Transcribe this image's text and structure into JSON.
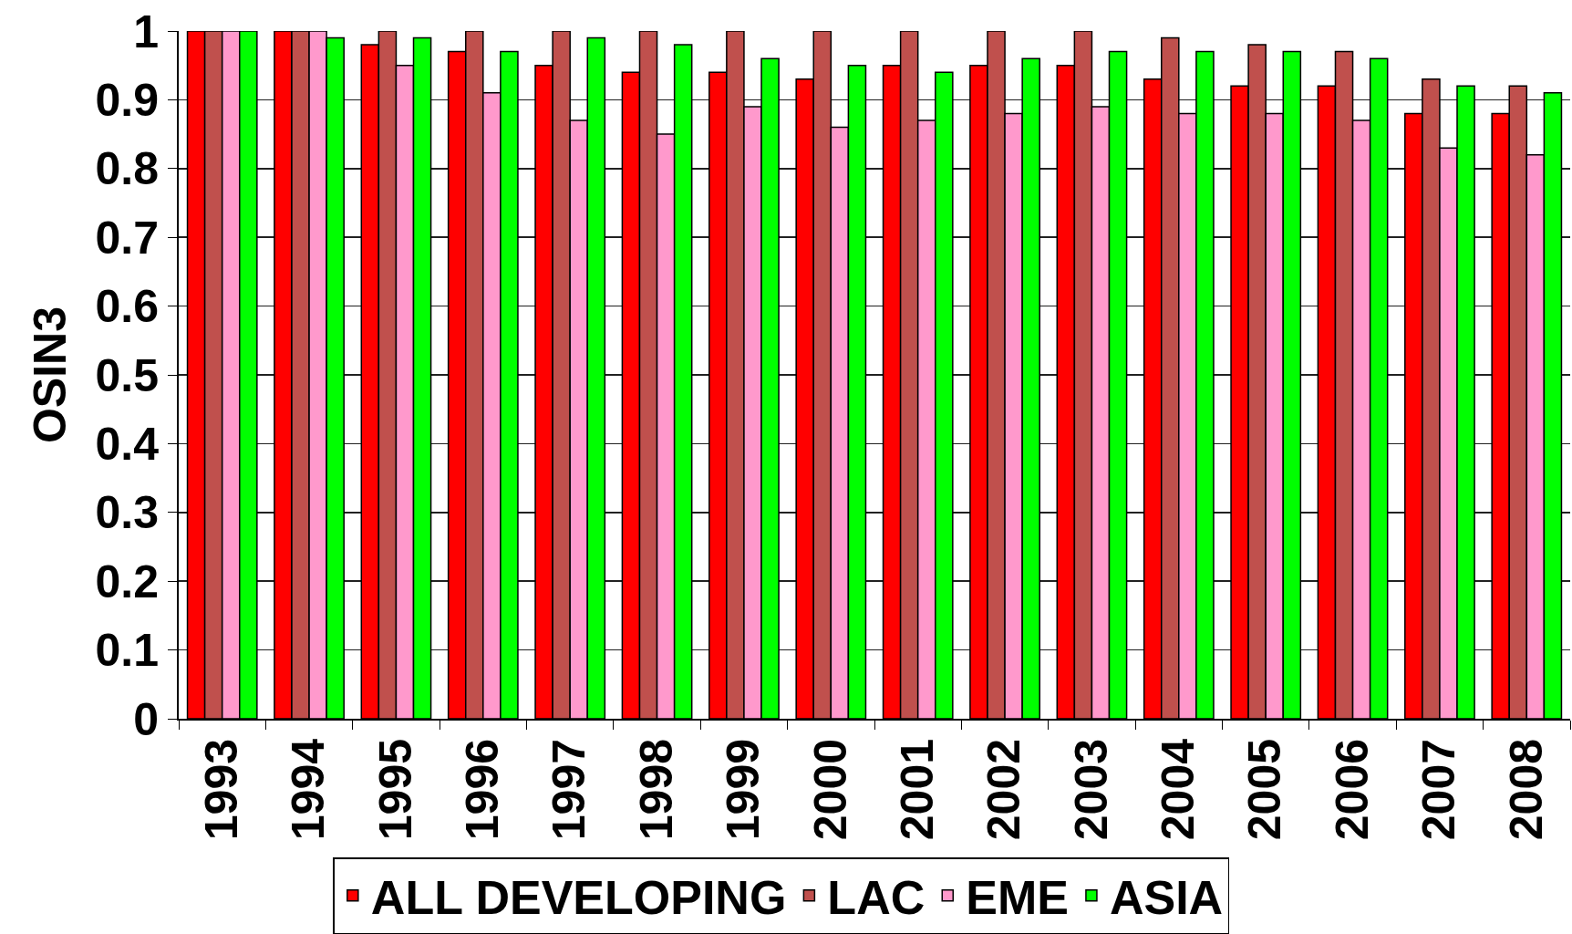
{
  "chart_data": {
    "type": "bar",
    "ylabel": "OSIN3",
    "categories": [
      "1993",
      "1994",
      "1995",
      "1996",
      "1997",
      "1998",
      "1999",
      "2000",
      "2001",
      "2002",
      "2003",
      "2004",
      "2005",
      "2006",
      "2007",
      "2008"
    ],
    "series": [
      {
        "name": "ALL DEVELOPING",
        "color": "#ff0000",
        "values": [
          1,
          1,
          0.98,
          0.97,
          0.95,
          0.94,
          0.94,
          0.93,
          0.95,
          0.95,
          0.95,
          0.93,
          0.92,
          0.92,
          0.88,
          0.88
        ]
      },
      {
        "name": "LAC",
        "color": "#c0504d",
        "values": [
          1,
          1,
          1,
          1,
          1,
          1,
          1,
          1,
          1,
          1,
          1,
          0.99,
          0.98,
          0.97,
          0.93,
          0.92
        ]
      },
      {
        "name": "EME",
        "color": "#ff99cc",
        "values": [
          1,
          1,
          0.95,
          0.91,
          0.87,
          0.85,
          0.89,
          0.86,
          0.87,
          0.88,
          0.89,
          0.88,
          0.88,
          0.87,
          0.83,
          0.82
        ]
      },
      {
        "name": "ASIA",
        "color": "#00ff00",
        "values": [
          1,
          0.99,
          0.99,
          0.97,
          0.99,
          0.98,
          0.96,
          0.95,
          0.94,
          0.96,
          0.97,
          0.97,
          0.97,
          0.96,
          0.92,
          0.91
        ]
      }
    ],
    "ylim": [
      0,
      1
    ],
    "yticks": [
      0,
      0.1,
      0.2,
      0.3,
      0.4,
      0.5,
      0.6,
      0.7,
      0.8,
      0.9,
      1
    ],
    "grid": "y",
    "legend": "bottom"
  }
}
